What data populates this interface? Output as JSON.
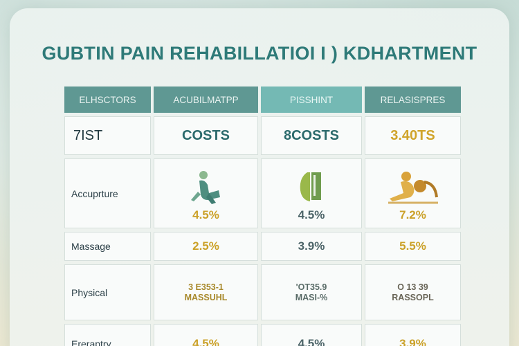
{
  "title": "GUBTIN PAIN REHABILLATIOI I ) KDHARTMENT",
  "header": [
    "ELHSCTORS",
    "ACUBILMATPP",
    "PISSHINT",
    "RELASISPRES"
  ],
  "subheader": [
    "7IST",
    "COSTS",
    "8COSTS",
    "3.40TS"
  ],
  "rows": [
    {
      "label": "Accuprture",
      "values": [
        "4.5%",
        "4.5%",
        "7.2%"
      ]
    },
    {
      "label": "Massage",
      "values": [
        "2.5%",
        "3.9%",
        "5.5%"
      ]
    },
    {
      "label": "Physical",
      "values": [
        [
          "3 E353-1",
          "MASSUHL"
        ],
        [
          "'OT35.9",
          "MASI-%"
        ],
        [
          "O 13 39",
          "RASSOPL"
        ]
      ]
    },
    {
      "label": "Ereraptry",
      "values": [
        "4.5%",
        "4.5%",
        "3.9%"
      ]
    }
  ],
  "icons": [
    "stretching-person-icon",
    "leaf-device-icon",
    "massage-person-icon"
  ],
  "colors": {
    "accent": "#2e7a78",
    "header": "#5f9893",
    "header_alt": "#74b9b4",
    "gold": "#cba128"
  }
}
